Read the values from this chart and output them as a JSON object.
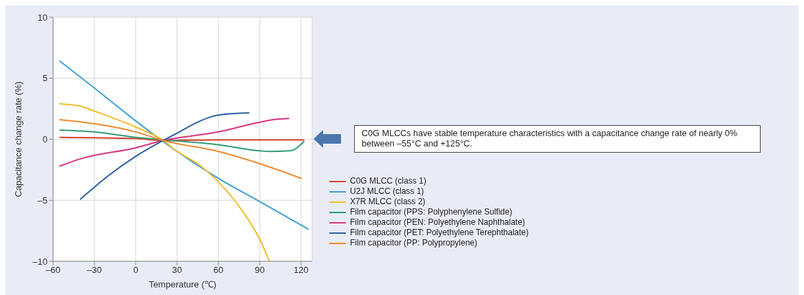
{
  "chart_data": {
    "type": "line",
    "xlabel": "Temperature (℃)",
    "ylabel": "Capacitance change rate (%)",
    "xlim": [
      -60,
      128
    ],
    "xticks": [
      {
        "value": -60,
        "label": "–60"
      },
      {
        "value": -30,
        "label": "–30"
      },
      0,
      30,
      60,
      90,
      120
    ],
    "ylim": [
      -10,
      10
    ],
    "yticks": [
      {
        "value": -10,
        "label": "–10"
      },
      {
        "value": -5,
        "label": "–5"
      },
      0,
      5,
      10
    ],
    "grid": true,
    "legend": "right",
    "marker": "none",
    "line_style": "solid",
    "annotations": [
      "C0G MLCCs have stable temperature characteristics with a capacitance change rate of nearly 0% between –55°C and +125°C."
    ],
    "series": [
      {
        "name": "C0G MLCC (class 1)",
        "color": "#d9412b",
        "x": [
          -55,
          0,
          20,
          60,
          122
        ],
        "values": [
          0.15,
          0.05,
          -0.1,
          -0.05,
          -0.05
        ]
      },
      {
        "name": "U2J MLCC (class 1)",
        "color": "#3f9fd4",
        "x": [
          -55,
          -30,
          0,
          20,
          60,
          90,
          125
        ],
        "values": [
          6.4,
          4.2,
          1.5,
          -0.2,
          -3.2,
          -5.1,
          -7.35
        ]
      },
      {
        "name": "X7R MLCC (class 2)",
        "color": "#f2bd2b",
        "x": [
          -55,
          -40,
          -30,
          0,
          20,
          30,
          45,
          60,
          75,
          90,
          97
        ],
        "values": [
          2.9,
          2.7,
          2.3,
          1.0,
          -0.1,
          -1.0,
          -2.0,
          -3.5,
          -5.5,
          -8.2,
          -10
        ]
      },
      {
        "name": "Film capacitor (PPS: Polyphenylene Sulfide)",
        "color": "#2f9a7a",
        "x": [
          -55,
          -30,
          0,
          20,
          60,
          90,
          97,
          112,
          122
        ],
        "values": [
          0.75,
          0.6,
          0.15,
          -0.05,
          -0.45,
          -0.95,
          -1.0,
          -0.95,
          -0.2
        ]
      },
      {
        "name": "Film capacitor (PEN: Polyethylene Naphthalate)",
        "color": "#d63384",
        "x": [
          -55,
          -40,
          0,
          20,
          60,
          90,
          100,
          111
        ],
        "values": [
          -2.2,
          -1.6,
          -0.7,
          -0.1,
          0.6,
          1.4,
          1.6,
          1.7
        ]
      },
      {
        "name": "Film capacitor (PET: Polyethylene Terephthalate)",
        "color": "#2b5f9e",
        "x": [
          -40,
          -20,
          0,
          20,
          30,
          45,
          55,
          65,
          82
        ],
        "values": [
          -4.9,
          -3.0,
          -1.4,
          -0.1,
          0.5,
          1.4,
          1.85,
          2.05,
          2.15
        ]
      },
      {
        "name": "Film capacitor (PP: Polypropylene)",
        "color": "#ee8a2f",
        "x": [
          -55,
          0,
          20,
          60,
          90,
          120
        ],
        "values": [
          1.6,
          0.6,
          -0.1,
          -1.0,
          -2.0,
          -3.2
        ]
      }
    ]
  }
}
